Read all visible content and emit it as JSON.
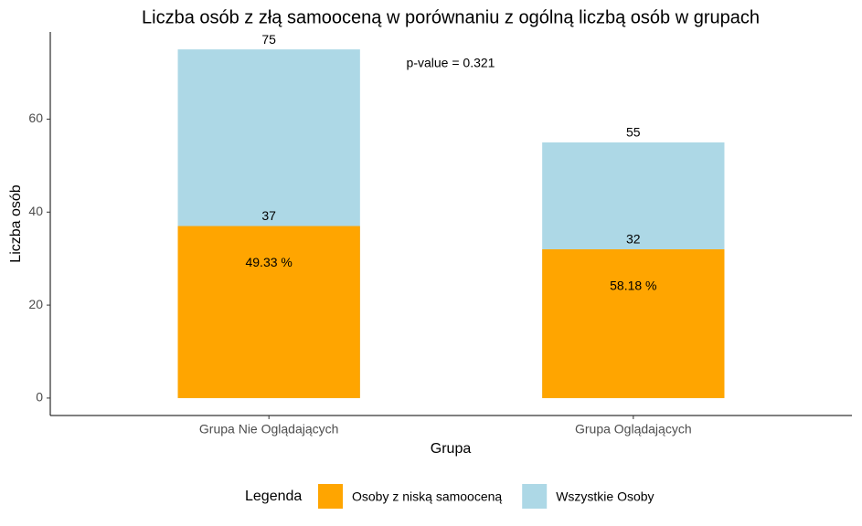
{
  "chart_data": {
    "type": "bar",
    "title": "Liczba osób z złą samooceną w porównaniu z ogólną liczbą osób w grupach",
    "x_label": "Grupa",
    "y_label": "Liczba osób",
    "categories": [
      "Grupa Nie Oglądających",
      "Grupa Oglądających"
    ],
    "series": [
      {
        "name": "Osoby z niską samooceną",
        "color": "#FFA500",
        "values": [
          37,
          32
        ]
      },
      {
        "name": "Wszystkie Osoby",
        "color": "#ADD8E6",
        "values": [
          75,
          55
        ]
      }
    ],
    "percent_labels": [
      "49.33 %",
      "58.18 %"
    ],
    "annotation": "p-value = 0.321",
    "legend_title": "Legenda",
    "legend_position": "bottom",
    "ylim": [
      -3.75,
      78.75
    ],
    "yticks": [
      0,
      20,
      40,
      60
    ],
    "grid": false
  }
}
